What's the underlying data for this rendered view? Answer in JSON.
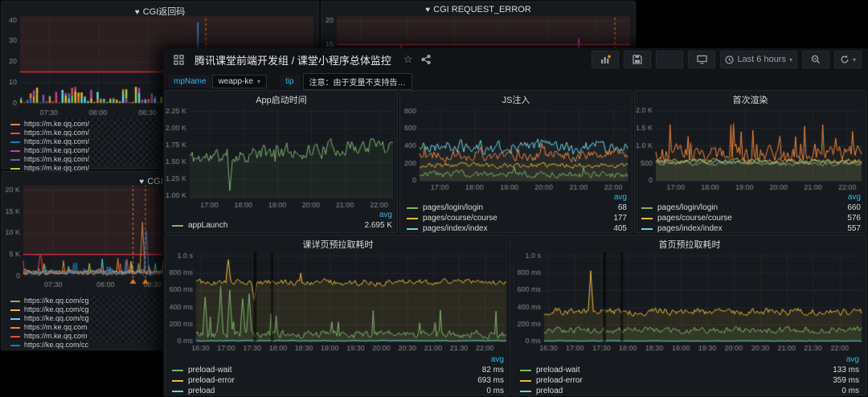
{
  "icons": {
    "heart": "♥",
    "star": "☆",
    "caret": "▾"
  },
  "colors": {
    "green": "#7eb26d",
    "yellow": "#eab839",
    "cyan": "#6ed0e0",
    "orange": "#ef843c",
    "red": "#e24d42",
    "blue": "#1f78c1",
    "purple": "#ba43a9",
    "accent": "#33b5e5",
    "threshold": "#e02f44"
  },
  "fg": {
    "nav": {
      "title": "腾讯课堂前端开发组 / 课堂小程序总体监控",
      "time_range": "Last 6 hours"
    },
    "vars": {
      "mp_label": "mpName",
      "mp_value": "weapp-ke",
      "tip_label": "tip",
      "tip_text": "注意：由于变量不支持告…"
    },
    "legend_header": "avg",
    "panels": [
      {
        "title": "App启动时间",
        "partial_row": false,
        "legend": [
          {
            "label": "appLaunch",
            "color": "#7eb26d",
            "value": "2.695 K"
          }
        ]
      },
      {
        "title": "JS注入",
        "partial_row": true,
        "legend": [
          {
            "label": "pages/login/login",
            "color": "#7eb26d",
            "value": "68"
          },
          {
            "label": "pages/course/course",
            "color": "#eab839",
            "value": "177"
          },
          {
            "label": "pages/index/index",
            "color": "#6ed0e0",
            "value": "405"
          }
        ]
      },
      {
        "title": "首次渲染",
        "partial_row": true,
        "legend": [
          {
            "label": "pages/login/login",
            "color": "#7eb26d",
            "value": "660"
          },
          {
            "label": "pages/course/course",
            "color": "#eab839",
            "value": "576"
          },
          {
            "label": "pages/index/index",
            "color": "#6ed0e0",
            "value": "557"
          }
        ]
      },
      {
        "title": "课详页预拉取耗时",
        "partial_row": false,
        "legend": [
          {
            "label": "preload-wait",
            "color": "#7eb26d",
            "value": "82 ms"
          },
          {
            "label": "preload-error",
            "color": "#eab839",
            "value": "693 ms"
          },
          {
            "label": "preload",
            "color": "#6ed0e0",
            "value": "0 ms"
          }
        ]
      },
      {
        "title": "首页预拉取耗时",
        "partial_row": false,
        "legend": [
          {
            "label": "preload-wait",
            "color": "#7eb26d",
            "value": "133 ms"
          },
          {
            "label": "preload-error",
            "color": "#eab839",
            "value": "359 ms"
          },
          {
            "label": "preload",
            "color": "#6ed0e0",
            "value": "0 ms"
          }
        ]
      }
    ]
  },
  "bg": {
    "panels": [
      {
        "title": "CGI返回码"
      },
      {
        "title": "CGI REQUEST_ERROR"
      },
      {
        "title": "CGI耗时"
      }
    ],
    "legend_top": [
      {
        "label": "https://m.ke.qq.com/",
        "color": "#ef843c"
      },
      {
        "label": "https://m.ke.qq.com/",
        "color": "#e24d42"
      },
      {
        "label": "https://m.ke.qq.com/",
        "color": "#1f78c1"
      },
      {
        "label": "https://m.ke.qq.com/",
        "color": "#ba43a9"
      },
      {
        "label": "https://m.ke.qq.com/",
        "color": "#705da0"
      },
      {
        "label": "https://m.ke.qq.com/",
        "color": "#a9cc3a"
      }
    ],
    "legend_bottom": [
      {
        "label": "https://ke.qq.com/cg",
        "color": "#7eb26d"
      },
      {
        "label": "https://ke.qq.com/cg",
        "color": "#eab839"
      },
      {
        "label": "https://ke.qq.com/cg",
        "color": "#6ed0e0"
      },
      {
        "label": "https://m.ke.qq.com",
        "color": "#ef843c"
      },
      {
        "label": "https://m.ke.qq.com",
        "color": "#e24d42"
      },
      {
        "label": "https://ke.qq.com/cc",
        "color": "#1f78c1"
      }
    ]
  },
  "chart_data": [
    {
      "id": "c-p1",
      "type": "line",
      "title": "App启动时间",
      "gl": 30,
      "y_min": 960,
      "y_max": 2300,
      "y_ticks": [
        [
          2250,
          "2.25 K"
        ],
        [
          2000,
          "2.00 K"
        ],
        [
          1750,
          "1.75 K"
        ],
        [
          1500,
          "1.50 K"
        ],
        [
          1250,
          "1.25 K"
        ],
        [
          1000,
          "1.00 K"
        ]
      ],
      "x_ticks": [
        [
          0.097,
          "17:00"
        ],
        [
          0.264,
          "18:00"
        ],
        [
          0.431,
          "19:00"
        ],
        [
          0.597,
          "20:00"
        ],
        [
          0.764,
          "21:00"
        ],
        [
          0.931,
          "22:00"
        ]
      ],
      "series": [
        {
          "name": "appLaunch",
          "color": "#7eb26d",
          "avg": "2.695 K",
          "base": 1660,
          "amp": 185,
          "trend": 110,
          "sp": 0.012,
          "sa": -320,
          "fill": 0.07,
          "seed": 11,
          "events": [
            [
              0.195,
              1075
            ]
          ]
        }
      ]
    },
    {
      "id": "c-p2",
      "type": "line",
      "title": "JS注入",
      "gl": 24,
      "y_min": 0,
      "y_max": 840,
      "y_ticks": [
        [
          0,
          "0"
        ],
        [
          200,
          "200"
        ],
        [
          400,
          "400"
        ],
        [
          600,
          "600"
        ],
        [
          800,
          "800"
        ]
      ],
      "x_ticks": [
        [
          0.097,
          "17:00"
        ],
        [
          0.264,
          "18:00"
        ],
        [
          0.431,
          "19:00"
        ],
        [
          0.597,
          "20:00"
        ],
        [
          0.764,
          "21:00"
        ],
        [
          0.931,
          "22:00"
        ]
      ],
      "series": [
        {
          "name": "pages/index/index",
          "color": "#6ed0e0",
          "avg": 405,
          "base": 395,
          "amp": 120,
          "sp": 0.03,
          "sa": 150,
          "fill": 0.05,
          "seed": 21
        },
        {
          "name": "",
          "color": "#ef843c",
          "base": 300,
          "amp": 105,
          "sp": 0.02,
          "sa": 90,
          "fill": 0.05,
          "seed": 22
        },
        {
          "name": "pages/course/course",
          "color": "#eab839",
          "avg": 177,
          "base": 178,
          "amp": 45,
          "fill": 0.05,
          "seed": 23
        },
        {
          "name": "pages/login/login",
          "color": "#7eb26d",
          "avg": 68,
          "base": 75,
          "amp": 60,
          "sp": 0.03,
          "sa": 70,
          "fill": 0.05,
          "seed": 24,
          "cmin": 8
        }
      ]
    },
    {
      "id": "c-p3",
      "type": "line",
      "title": "首次渲染",
      "gl": 26,
      "y_min": 0,
      "y_max": 2080,
      "y_ticks": [
        [
          0,
          "0"
        ],
        [
          500,
          "500"
        ],
        [
          1000,
          "1.0 K"
        ],
        [
          1500,
          "1.5 K"
        ],
        [
          2000,
          "2.0 K"
        ]
      ],
      "x_ticks": [
        [
          0.097,
          "17:00"
        ],
        [
          0.264,
          "18:00"
        ],
        [
          0.431,
          "19:00"
        ],
        [
          0.597,
          "20:00"
        ],
        [
          0.764,
          "21:00"
        ],
        [
          0.931,
          "22:00"
        ]
      ],
      "series": [
        {
          "name": "pages/login/login",
          "color": "#7eb26d",
          "avg": 660,
          "base": 490,
          "amp": 90,
          "fill": 0.06,
          "seed": 31,
          "cmin": 60
        },
        {
          "name": "pages/index/index",
          "color": "#6ed0e0",
          "avg": 557,
          "base": 545,
          "amp": 95,
          "fill": 0.06,
          "seed": 32
        },
        {
          "name": "pages/course/course",
          "color": "#eab839",
          "avg": 576,
          "base": 560,
          "amp": 110,
          "fill": 0.06,
          "seed": 33
        },
        {
          "name": "",
          "color": "#ef843c",
          "base": 780,
          "amp": 360,
          "sp": 0.1,
          "sa": 680,
          "fill": 0.05,
          "seed": 34,
          "cmin": 120
        }
      ]
    },
    {
      "id": "c-p4",
      "type": "line",
      "title": "课详页预拉取耗时",
      "gl": 38,
      "y_min": 0,
      "y_max": 1040,
      "y_ticks": [
        [
          0,
          "0 ms"
        ],
        [
          200,
          "200 ms"
        ],
        [
          400,
          "400 ms"
        ],
        [
          600,
          "600 ms"
        ],
        [
          800,
          "800 ms"
        ],
        [
          1000,
          "1.0 s"
        ]
      ],
      "x_ticks": [
        [
          0.014,
          "16:30"
        ],
        [
          0.097,
          "17:00"
        ],
        [
          0.181,
          "17:30"
        ],
        [
          0.264,
          "18:00"
        ],
        [
          0.347,
          "18:30"
        ],
        [
          0.431,
          "19:00"
        ],
        [
          0.514,
          "19:30"
        ],
        [
          0.597,
          "20:00"
        ],
        [
          0.681,
          "20:30"
        ],
        [
          0.764,
          "21:00"
        ],
        [
          0.847,
          "21:30"
        ],
        [
          0.931,
          "22:00"
        ]
      ],
      "verts": [
        {
          "f": 0.19,
          "w": 4,
          "color": "rgba(0,0,0,0.55)"
        },
        {
          "f": 0.245,
          "w": 3,
          "color": "rgba(0,0,0,0.5)"
        }
      ],
      "series": [
        {
          "name": "preload-error",
          "color": "#eab839",
          "avg": "693 ms",
          "base": 690,
          "amp": 55,
          "sp": 0.01,
          "sa": 120,
          "fill": 0.1,
          "seed": 41,
          "events": [
            [
              0.105,
              955
            ],
            [
              0.186,
              480
            ]
          ]
        },
        {
          "name": "preload-wait",
          "color": "#7eb26d",
          "avg": "82 ms",
          "base": 85,
          "amp": 70,
          "sp": 0.05,
          "sa": 300,
          "fill": 0.1,
          "seed": 42,
          "cmin": 5,
          "events": [
            [
              0.03,
              520
            ],
            [
              0.08,
              645
            ],
            [
              0.11,
              600
            ],
            [
              0.15,
              500
            ],
            [
              0.17,
              555
            ]
          ]
        },
        {
          "name": "preload",
          "color": "#6ed0e0",
          "avg": "0 ms",
          "base": 10,
          "amp": 6,
          "fill": 0,
          "seed": 43,
          "cmin": 3
        }
      ]
    },
    {
      "id": "c-p5",
      "type": "line",
      "title": "首页预拉取耗时",
      "gl": 38,
      "y_min": 0,
      "y_max": 1040,
      "y_ticks": [
        [
          0,
          "0 ms"
        ],
        [
          200,
          "200 ms"
        ],
        [
          400,
          "400 ms"
        ],
        [
          600,
          "600 ms"
        ],
        [
          800,
          "800 ms"
        ],
        [
          1000,
          "1.0 s"
        ]
      ],
      "x_ticks": [
        [
          0.014,
          "16:30"
        ],
        [
          0.097,
          "17:00"
        ],
        [
          0.181,
          "17:30"
        ],
        [
          0.264,
          "18:00"
        ],
        [
          0.347,
          "18:30"
        ],
        [
          0.431,
          "19:00"
        ],
        [
          0.514,
          "19:30"
        ],
        [
          0.597,
          "20:00"
        ],
        [
          0.681,
          "20:30"
        ],
        [
          0.764,
          "21:00"
        ],
        [
          0.847,
          "21:30"
        ],
        [
          0.931,
          "22:00"
        ]
      ],
      "verts": [
        {
          "f": 0.19,
          "w": 4,
          "color": "rgba(0,0,0,0.55)"
        },
        {
          "f": 0.245,
          "w": 3,
          "color": "rgba(0,0,0,0.5)"
        }
      ],
      "series": [
        {
          "name": "preload-error",
          "color": "#eab839",
          "avg": "359 ms",
          "base": 350,
          "amp": 65,
          "fill": 0.1,
          "seed": 51,
          "events": [
            [
              0.145,
              825
            ]
          ]
        },
        {
          "name": "preload-wait",
          "color": "#7eb26d",
          "avg": "133 ms",
          "base": 135,
          "amp": 60,
          "fill": 0.1,
          "seed": 52,
          "cmin": 20
        },
        {
          "name": "preload",
          "color": "#6ed0e0",
          "avg": "0 ms",
          "base": 8,
          "amp": 5,
          "fill": 0,
          "seed": 53,
          "cmin": 2
        }
      ]
    },
    {
      "id": "c-a",
      "type": "bar+line",
      "title": "CGI返回码",
      "gl": 22,
      "gb": 13,
      "y_min": -1.5,
      "y_max": 42,
      "y_ticks": [
        [
          0,
          "0"
        ],
        [
          10,
          "10"
        ],
        [
          20,
          "20"
        ],
        [
          30,
          "30"
        ],
        [
          40,
          "40"
        ]
      ],
      "x_ticks": [
        [
          0.098,
          "07:30"
        ],
        [
          0.266,
          "08:00"
        ],
        [
          0.434,
          "08:30"
        ]
      ],
      "band_from": 15,
      "threshold": 15,
      "bars": {
        "n": 92,
        "max": 8,
        "seed": 61
      },
      "verts": [
        {
          "f": 0.606,
          "color": "#1f78c1",
          "from": 0,
          "to": 39,
          "w": 2
        },
        {
          "f": 0.633,
          "color": "#eb7b18",
          "dash": true,
          "from": 0,
          "to": 42
        }
      ]
    },
    {
      "id": "c-b",
      "type": "line",
      "title": "CGI REQUEST_ERROR",
      "gl": 18,
      "gb": 0,
      "y_min": 12,
      "y_max": 21,
      "y_ticks": [
        [
          20,
          "20"
        ],
        [
          15,
          "15"
        ]
      ],
      "x_ticks": [
        [
          0.08,
          ""
        ],
        [
          0.24,
          ""
        ],
        [
          0.4,
          ""
        ],
        [
          0.56,
          ""
        ],
        [
          0.72,
          ""
        ],
        [
          0.88,
          ""
        ]
      ],
      "band_from": 15,
      "threshold": 15,
      "verts": [
        {
          "f": 0.22,
          "color": "#e02f44",
          "from": 12.2,
          "to": 15,
          "w": 2
        },
        {
          "f": 0.825,
          "color": "#ba43a9",
          "from": 12.2,
          "to": 16.2,
          "w": 2
        },
        {
          "f": 0.948,
          "color": "#eb7b18",
          "dash": true,
          "from": 12,
          "to": 21
        }
      ]
    },
    {
      "id": "c-c",
      "type": "line",
      "title": "CGI耗时",
      "gl": 26,
      "y_min": -500,
      "y_max": 21000,
      "y_ticks": [
        [
          0,
          "0"
        ],
        [
          5000,
          "5 K"
        ],
        [
          10000,
          "10 K"
        ],
        [
          15000,
          "15 K"
        ],
        [
          20000,
          "20 K"
        ]
      ],
      "x_ticks": [
        [
          0.103,
          "07:30"
        ],
        [
          0.283,
          "08:00"
        ],
        [
          0.445,
          "08:30"
        ]
      ],
      "band_from": 5000,
      "threshold": 5000,
      "verts": [
        {
          "f": 0.378,
          "color": "#eb7b18",
          "dash": true,
          "tri": true
        },
        {
          "f": 0.421,
          "color": "#eb7b18",
          "dash": true,
          "tri": true
        }
      ],
      "series": [
        {
          "name": "https://ke.qq.com/cg",
          "color": "#7eb26d",
          "base": 700,
          "amp": 700,
          "sp": 0.04,
          "sa": 2500,
          "seed": 71,
          "cmin": 120,
          "cmax": 5600
        },
        {
          "name": "https://ke.qq.com/cg",
          "color": "#eab839",
          "base": 800,
          "amp": 800,
          "sp": 0.04,
          "sa": 2800,
          "seed": 72,
          "cmin": 150,
          "cmax": 6200
        },
        {
          "name": "https://ke.qq.com/cg",
          "color": "#6ed0e0",
          "base": 900,
          "amp": 900,
          "sp": 0.05,
          "sa": 3200,
          "seed": 73,
          "cmin": 150,
          "cmax": 6500
        },
        {
          "name": "https://m.ke.qq.com",
          "color": "#ef843c",
          "base": 800,
          "amp": 800,
          "sp": 0.05,
          "sa": 3000,
          "seed": 74,
          "cmin": 150,
          "cmax": 6800,
          "events": [
            [
              0.41,
              12500
            ]
          ]
        },
        {
          "name": "https://m.ke.qq.com",
          "color": "#e24d42",
          "base": 900,
          "amp": 900,
          "sp": 0.05,
          "sa": 3300,
          "seed": 75,
          "cmin": 150,
          "cmax": 7000,
          "events": [
            [
              0.06,
              4800
            ]
          ]
        },
        {
          "name": "https://ke.qq.com/cc",
          "color": "#1f78c1",
          "base": 700,
          "amp": 700,
          "sp": 0.04,
          "sa": 2600,
          "seed": 76,
          "cmin": 120,
          "cmax": 6000,
          "events": [
            [
              0.425,
              10500
            ]
          ]
        }
      ]
    }
  ]
}
